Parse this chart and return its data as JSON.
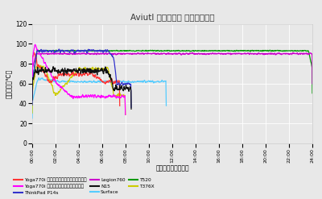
{
  "title": "Aviutl エンコード 平均温度推移",
  "xlabel": "経過時間（分：秒）",
  "ylabel": "平均温度（℃）",
  "ylim": [
    0,
    120
  ],
  "yticks": [
    0,
    20,
    40,
    60,
    80,
    100,
    120
  ],
  "bg_color": "#e8e8e8",
  "total_seconds": 1440,
  "xtick_interval": 120,
  "legend_entries": [
    {
      "label": "Yoga770i エクストリームパフォーマンス",
      "color": "#ff3333"
    },
    {
      "label": "Yoga770i インテリジェントクーリング",
      "color": "#ff00ff"
    },
    {
      "label": "ThinkPad P14s",
      "color": "#3333cc"
    },
    {
      "label": "Legion760",
      "color": "#cc00cc"
    },
    {
      "label": "N15",
      "color": "#111111"
    },
    {
      "label": "Surface",
      "color": "#55ccff"
    },
    {
      "label": "T520",
      "color": "#009900"
    },
    {
      "label": "T376X",
      "color": "#cccc00"
    }
  ]
}
